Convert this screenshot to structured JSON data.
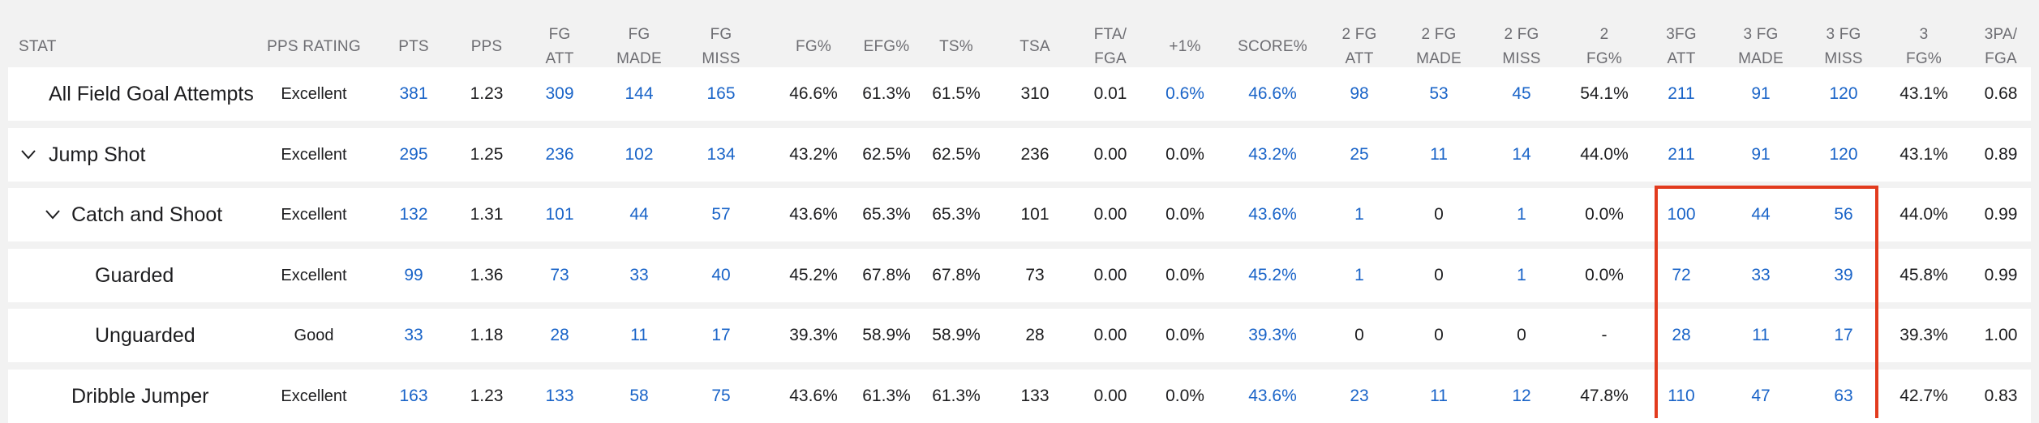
{
  "columns": [
    {
      "key": "stat",
      "label": "STAT"
    },
    {
      "key": "pps_rating",
      "label": "PPS RATING"
    },
    {
      "key": "pts",
      "label": "PTS"
    },
    {
      "key": "pps",
      "label": "PPS"
    },
    {
      "key": "fg_att",
      "label": "FG\nATT"
    },
    {
      "key": "fg_made",
      "label": "FG\nMADE"
    },
    {
      "key": "fg_miss",
      "label": "FG\nMISS"
    },
    {
      "key": "fg_pct",
      "label": "FG%"
    },
    {
      "key": "efg_pct",
      "label": "EFG%"
    },
    {
      "key": "ts_pct",
      "label": "TS%"
    },
    {
      "key": "tsa",
      "label": "TSA"
    },
    {
      "key": "fta_fga",
      "label": "FTA/\nFGA"
    },
    {
      "key": "plus1_pct",
      "label": "+1%"
    },
    {
      "key": "score_pct",
      "label": "SCORE%"
    },
    {
      "key": "fg2_att",
      "label": "2 FG\nATT"
    },
    {
      "key": "fg2_made",
      "label": "2 FG\nMADE"
    },
    {
      "key": "fg2_miss",
      "label": "2 FG\nMISS"
    },
    {
      "key": "fg2_pct",
      "label": "2\nFG%"
    },
    {
      "key": "fg3_att",
      "label": "3FG\nATT"
    },
    {
      "key": "fg3_made",
      "label": "3 FG\nMADE"
    },
    {
      "key": "fg3_miss",
      "label": "3 FG\nMISS"
    },
    {
      "key": "fg3_pct",
      "label": "3\nFG%"
    },
    {
      "key": "pa3_fga",
      "label": "3PA/\nFGA"
    }
  ],
  "link_columns": [
    "pts",
    "fg_att",
    "fg_made",
    "fg_miss",
    "plus1_pct",
    "score_pct",
    "fg2_att",
    "fg2_made",
    "fg2_miss",
    "fg3_att",
    "fg3_made",
    "fg3_miss"
  ],
  "rows": [
    {
      "label": "All Field Goal Attempts",
      "level": 0,
      "caret": false,
      "values": [
        "Excellent",
        "381",
        "1.23",
        "309",
        "144",
        "165",
        "46.6%",
        "61.3%",
        "61.5%",
        "310",
        "0.01",
        "0.6%",
        "46.6%",
        "98",
        "53",
        "45",
        "54.1%",
        "211",
        "91",
        "120",
        "43.1%",
        "0.68"
      ],
      "links": [
        false,
        true,
        false,
        true,
        true,
        true,
        false,
        false,
        false,
        false,
        false,
        true,
        true,
        true,
        true,
        true,
        false,
        true,
        true,
        true,
        false,
        false
      ]
    },
    {
      "label": "Jump Shot",
      "level": 0,
      "caret": true,
      "values": [
        "Excellent",
        "295",
        "1.25",
        "236",
        "102",
        "134",
        "43.2%",
        "62.5%",
        "62.5%",
        "236",
        "0.00",
        "0.0%",
        "43.2%",
        "25",
        "11",
        "14",
        "44.0%",
        "211",
        "91",
        "120",
        "43.1%",
        "0.89"
      ],
      "links": [
        false,
        true,
        false,
        true,
        true,
        true,
        false,
        false,
        false,
        false,
        false,
        false,
        true,
        true,
        true,
        true,
        false,
        true,
        true,
        true,
        false,
        false
      ]
    },
    {
      "label": "Catch and Shoot",
      "level": 1,
      "caret": true,
      "values": [
        "Excellent",
        "132",
        "1.31",
        "101",
        "44",
        "57",
        "43.6%",
        "65.3%",
        "65.3%",
        "101",
        "0.00",
        "0.0%",
        "43.6%",
        "1",
        "0",
        "1",
        "0.0%",
        "100",
        "44",
        "56",
        "44.0%",
        "0.99"
      ],
      "links": [
        false,
        true,
        false,
        true,
        true,
        true,
        false,
        false,
        false,
        false,
        false,
        false,
        true,
        true,
        false,
        true,
        false,
        true,
        true,
        true,
        false,
        false
      ]
    },
    {
      "label": "Guarded",
      "level": 2,
      "caret": false,
      "values": [
        "Excellent",
        "99",
        "1.36",
        "73",
        "33",
        "40",
        "45.2%",
        "67.8%",
        "67.8%",
        "73",
        "0.00",
        "0.0%",
        "45.2%",
        "1",
        "0",
        "1",
        "0.0%",
        "72",
        "33",
        "39",
        "45.8%",
        "0.99"
      ],
      "links": [
        false,
        true,
        false,
        true,
        true,
        true,
        false,
        false,
        false,
        false,
        false,
        false,
        true,
        true,
        false,
        true,
        false,
        true,
        true,
        true,
        false,
        false
      ]
    },
    {
      "label": "Unguarded",
      "level": 2,
      "caret": false,
      "values": [
        "Good",
        "33",
        "1.18",
        "28",
        "11",
        "17",
        "39.3%",
        "58.9%",
        "58.9%",
        "28",
        "0.00",
        "0.0%",
        "39.3%",
        "0",
        "0",
        "0",
        "-",
        "28",
        "11",
        "17",
        "39.3%",
        "1.00"
      ],
      "links": [
        false,
        true,
        false,
        true,
        true,
        true,
        false,
        false,
        false,
        false,
        false,
        false,
        true,
        false,
        false,
        false,
        false,
        true,
        true,
        true,
        false,
        false
      ]
    },
    {
      "label": "Dribble Jumper",
      "level": 1,
      "caret": false,
      "values": [
        "Excellent",
        "163",
        "1.23",
        "133",
        "58",
        "75",
        "43.6%",
        "61.3%",
        "61.3%",
        "133",
        "0.00",
        "0.0%",
        "43.6%",
        "23",
        "11",
        "12",
        "47.8%",
        "110",
        "47",
        "63",
        "42.7%",
        "0.83"
      ],
      "links": [
        false,
        true,
        false,
        true,
        true,
        true,
        false,
        false,
        false,
        false,
        false,
        false,
        true,
        true,
        true,
        true,
        false,
        true,
        true,
        true,
        false,
        false
      ]
    }
  ],
  "colors": {
    "link": "#1a64c8",
    "highlight": "#e23b1e",
    "header_text": "#6d6d72",
    "background": "#f2f2f2",
    "row": "#ffffff"
  },
  "icons": {
    "expanded_caret": "caret-down-icon"
  },
  "highlighted_columns": [
    "fg3_att",
    "fg3_made",
    "fg3_miss"
  ]
}
